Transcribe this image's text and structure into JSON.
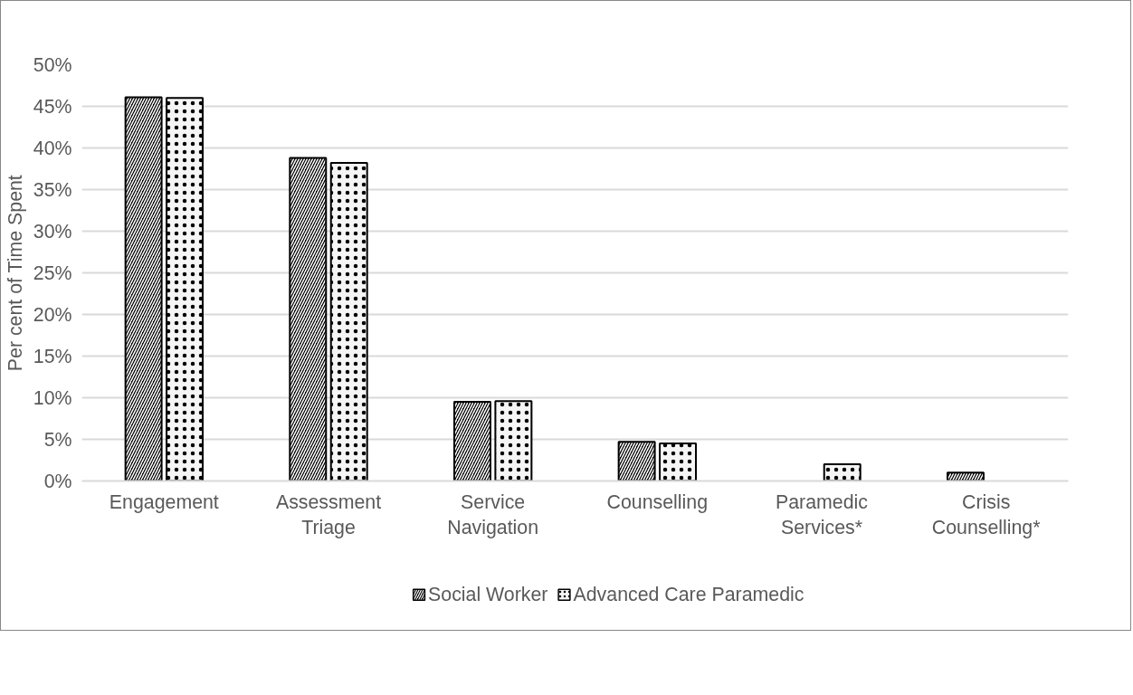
{
  "chart_data": {
    "type": "bar",
    "ylabel": "Per cent of Time Spent",
    "categories": [
      "Engagement",
      "Assessment\nTriage",
      "Service\nNavigation",
      "Counselling",
      "Paramedic\nServices*",
      "Crisis\nCounselling*"
    ],
    "series": [
      {
        "name": "Social Worker",
        "color": "#000000",
        "values": [
          46.1,
          38.8,
          9.5,
          4.7,
          null,
          1.0
        ]
      },
      {
        "name": "Advanced Care Paramedic",
        "color": "#f5f5f5",
        "values": [
          46.0,
          38.2,
          9.6,
          4.5,
          2.0,
          null
        ]
      }
    ],
    "ylim": [
      0,
      50
    ],
    "yticks": [
      {
        "value": 0,
        "label": "0%"
      },
      {
        "value": 5,
        "label": "5%"
      },
      {
        "value": 10,
        "label": "10%"
      },
      {
        "value": 15,
        "label": "15%"
      },
      {
        "value": 20,
        "label": "20%"
      },
      {
        "value": 25,
        "label": "25%"
      },
      {
        "value": 30,
        "label": "30%"
      },
      {
        "value": 35,
        "label": "35%"
      },
      {
        "value": 40,
        "label": "40%"
      },
      {
        "value": 45,
        "label": "45%"
      },
      {
        "value": 50,
        "label": "50%"
      }
    ],
    "grid": "y",
    "legend": "bottom"
  }
}
